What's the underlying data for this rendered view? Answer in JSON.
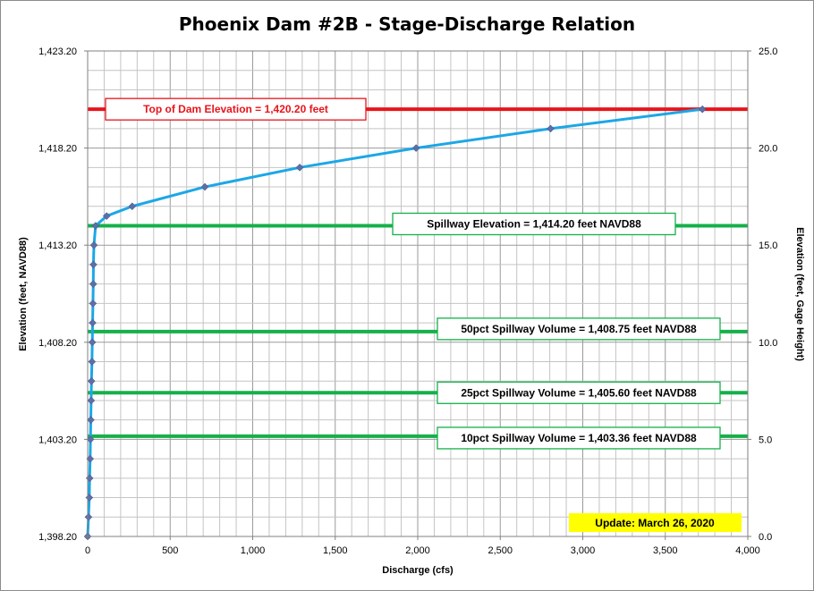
{
  "chart_data": {
    "type": "line",
    "title": "Phoenix Dam #2B - Stage-Discharge Relation",
    "xlabel": "Discharge  (cfs)",
    "ylabel": "Elevation  (feet, NAVD88)",
    "y2label": "Elevation  (feet, Gage Height)",
    "xlim": [
      0,
      4000
    ],
    "ylim": [
      1398.2,
      1423.2
    ],
    "y2lim": [
      0.0,
      25.0
    ],
    "x_ticks": [
      "0",
      "500",
      "1,000",
      "1,500",
      "2,000",
      "2,500",
      "3,000",
      "3,500",
      "4,000"
    ],
    "x_tick_values": [
      0,
      500,
      1000,
      1500,
      2000,
      2500,
      3000,
      3500,
      4000
    ],
    "y_ticks": [
      "1,398.20",
      "1,403.20",
      "1,408.20",
      "1,413.20",
      "1,418.20",
      "1,423.20"
    ],
    "y_tick_values": [
      1398.2,
      1403.2,
      1408.2,
      1413.2,
      1418.2,
      1423.2
    ],
    "y2_ticks": [
      "0.0",
      "5.0",
      "10.0",
      "15.0",
      "20.0",
      "25.0"
    ],
    "grid": true,
    "series": [
      {
        "color": "#1ca7e6",
        "marker_color": "#5b6fa8",
        "x": [
          0,
          5,
          10,
          12,
          15,
          17,
          19,
          21,
          23,
          26,
          28,
          30,
          32,
          34,
          35,
          38,
          48,
          115,
          270,
          710,
          1285,
          1990,
          2805,
          3725
        ],
        "y": [
          1398.2,
          1399.2,
          1400.2,
          1401.2,
          1402.2,
          1403.2,
          1404.2,
          1405.2,
          1406.2,
          1407.2,
          1408.2,
          1409.2,
          1410.2,
          1411.2,
          1412.2,
          1413.2,
          1414.2,
          1414.7,
          1415.2,
          1416.2,
          1417.2,
          1418.2,
          1419.2,
          1420.2
        ]
      }
    ],
    "reference_lines": [
      {
        "y": 1420.2,
        "color": "#e8141b",
        "label": "Top of Dam Elevation = 1,420.20  feet",
        "text_color": "#e8141b"
      },
      {
        "y": 1414.2,
        "color": "#15b04a",
        "label": "Spillway Elevation = 1,414.20  feet NAVD88",
        "text_color": "#000000"
      },
      {
        "y": 1408.75,
        "color": "#15b04a",
        "label": "50pct Spillway Volume = 1,408.75  feet NAVD88",
        "text_color": "#000000"
      },
      {
        "y": 1405.6,
        "color": "#15b04a",
        "label": "25pct Spillway Volume = 1,405.60  feet NAVD88",
        "text_color": "#000000"
      },
      {
        "y": 1403.36,
        "color": "#15b04a",
        "label": "10pct Spillway Volume = 1,403.36  feet NAVD88",
        "text_color": "#000000"
      }
    ],
    "update_note": "Update: March 26, 2020",
    "update_note_color": "#ffff00"
  }
}
